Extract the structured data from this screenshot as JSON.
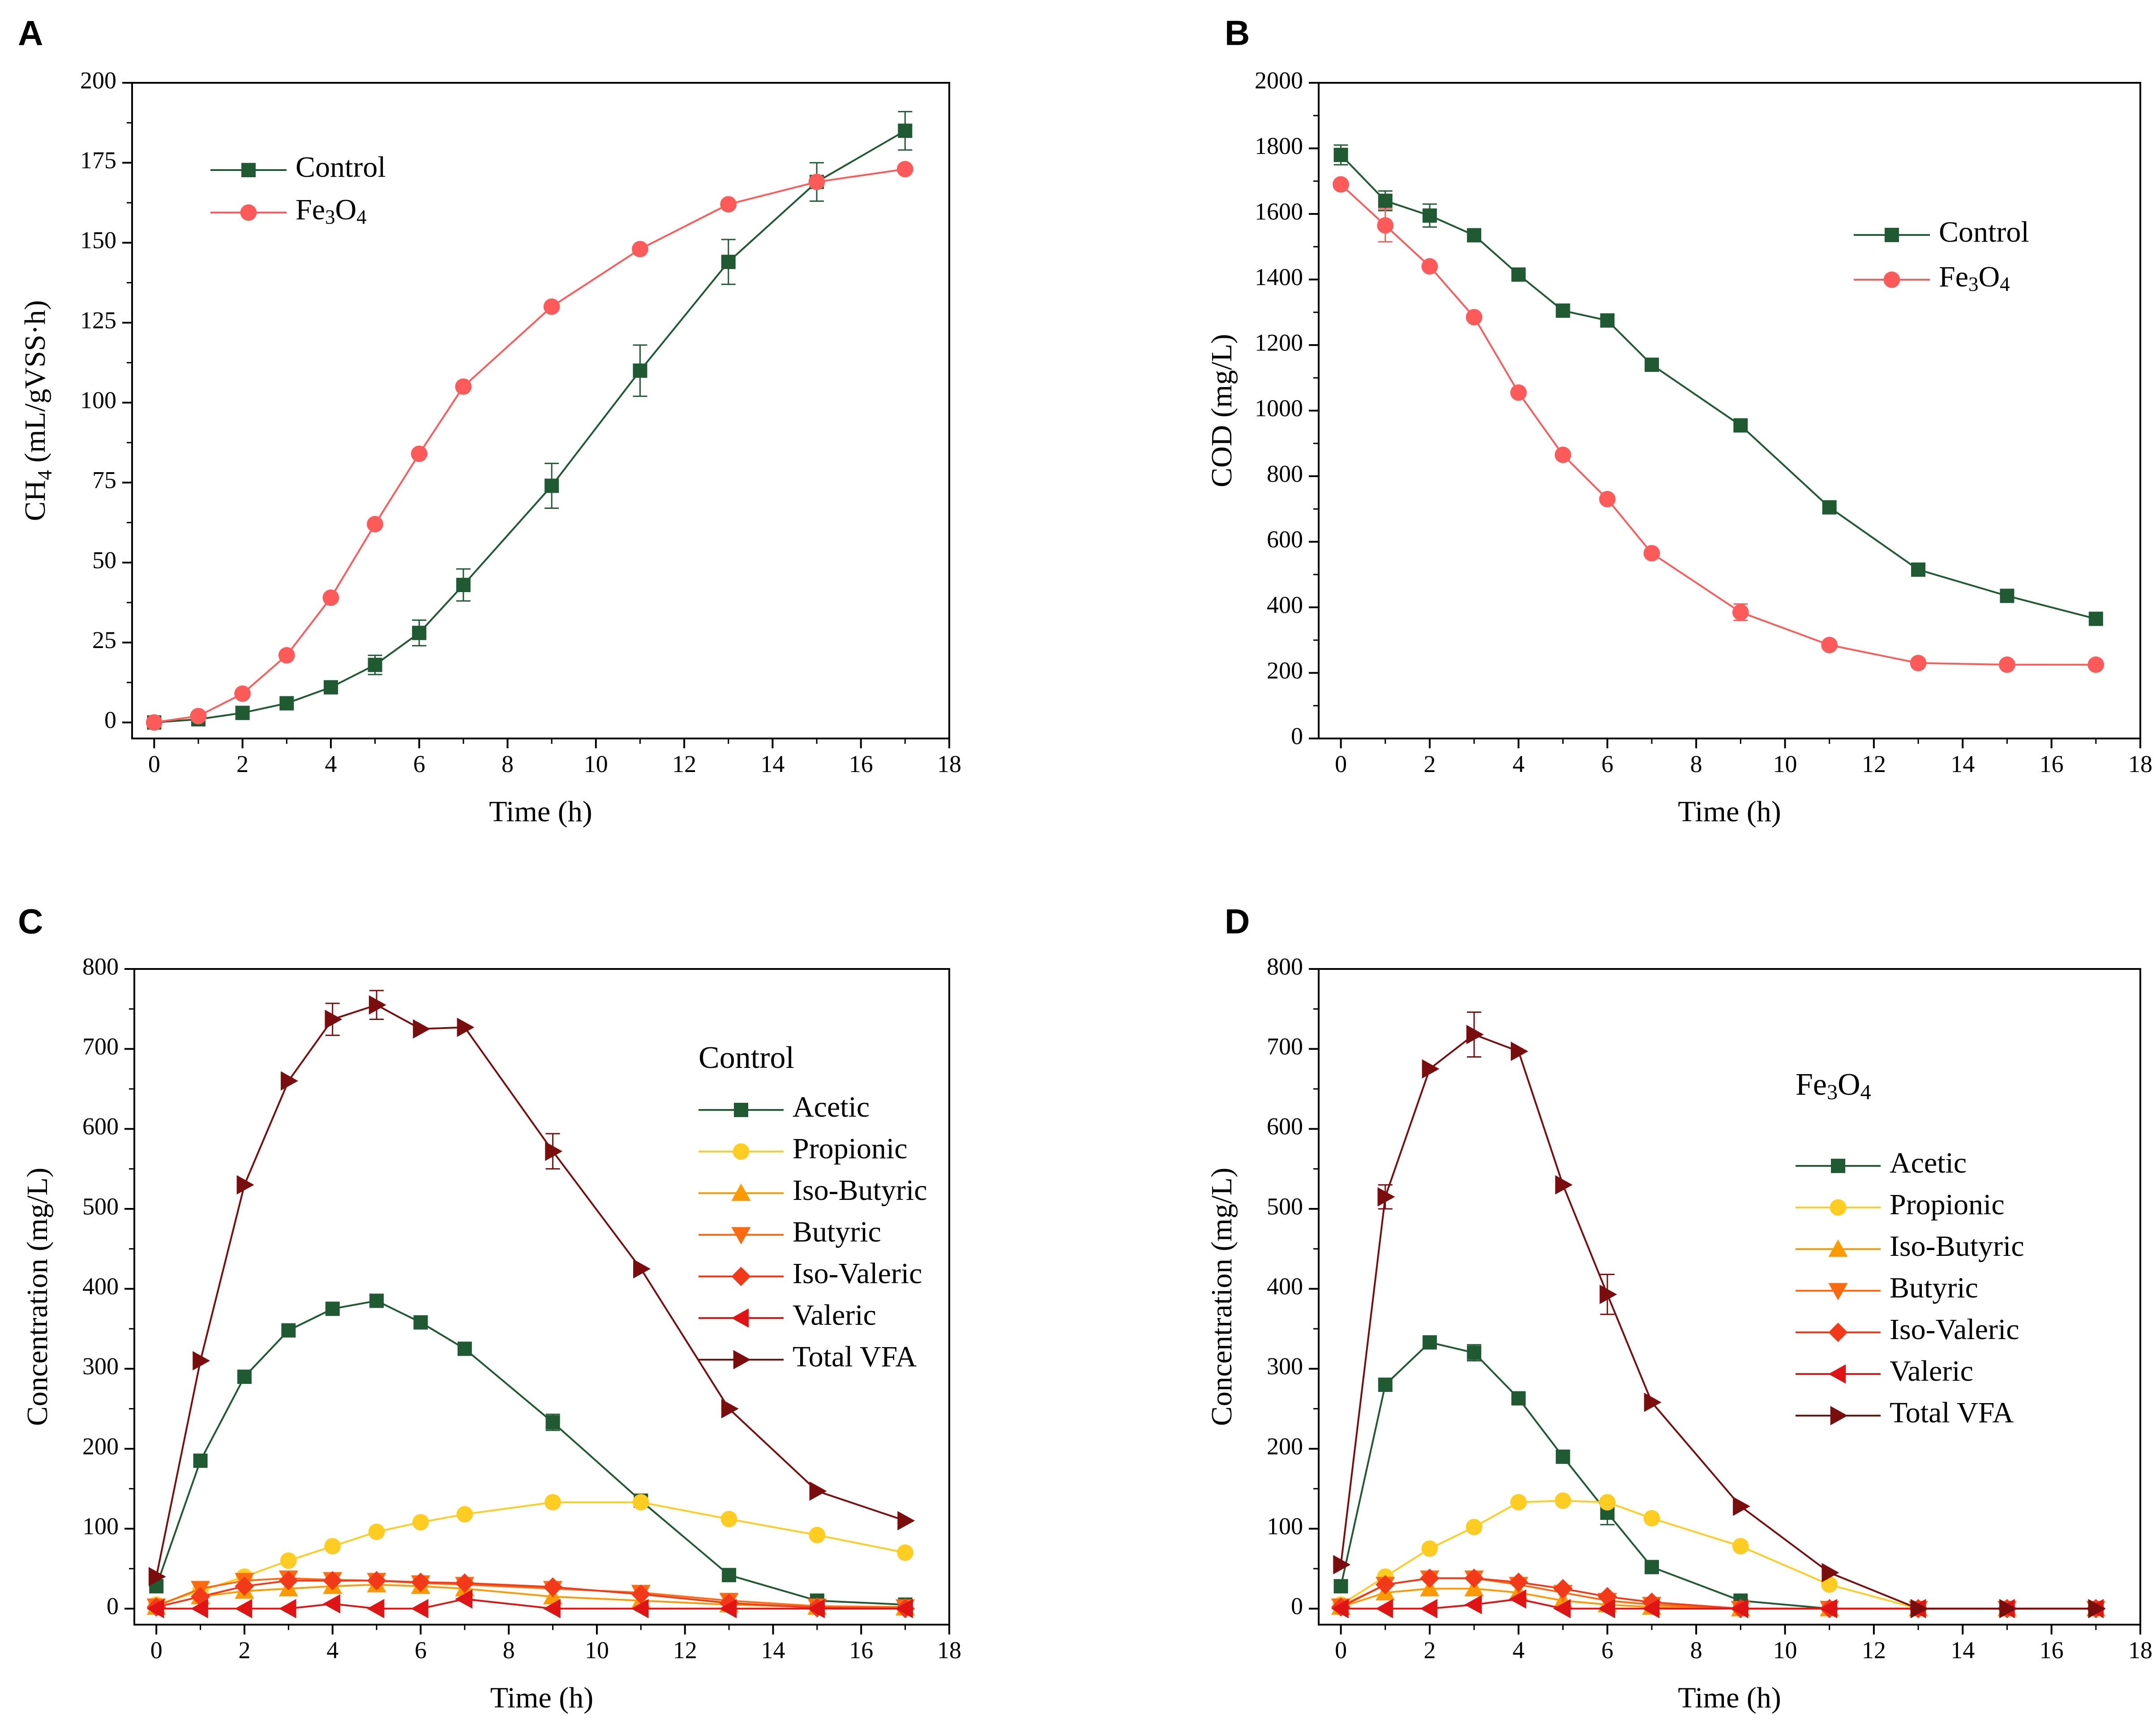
{
  "colors": {
    "control": "#1f5a32",
    "fe3o4": "#ff5a5a",
    "acetic": "#1f5a32",
    "propionic": "#ffcc22",
    "isobutyric": "#ff9900",
    "butyric": "#ff6a10",
    "isovaleric": "#f23a1a",
    "valeric": "#e01414",
    "totalvfa": "#7a0e0e"
  },
  "chart_data": [
    {
      "id": "A",
      "panel_label": "A",
      "type": "line",
      "xlabel": "Time (h)",
      "ylabel": "CH4 (mL/gVSS·h)",
      "ylabel_parts": [
        "CH",
        "4",
        " (mL/gVSS·h)"
      ],
      "xlim": [
        -0.5,
        18
      ],
      "ylim": [
        -5,
        200
      ],
      "xticks": [
        0,
        2,
        4,
        6,
        8,
        10,
        12,
        14,
        16,
        18
      ],
      "yticks": [
        0,
        25,
        50,
        75,
        100,
        125,
        150,
        175,
        200
      ],
      "legend_title": "",
      "legend_position": "top-left",
      "series": [
        {
          "name": "Control",
          "marker": "square",
          "color_key": "control",
          "x": [
            0,
            1,
            2,
            3,
            4,
            5,
            6,
            7,
            9,
            11,
            13,
            15,
            17
          ],
          "y": [
            0,
            1,
            3,
            6,
            11,
            18,
            28,
            43,
            74,
            110,
            144,
            169,
            185
          ],
          "err": [
            0,
            0,
            0,
            0,
            0,
            3,
            4,
            5,
            7,
            8,
            7,
            6,
            6
          ]
        },
        {
          "name": "Fe3O4",
          "label_parts": [
            "Fe",
            "3",
            "O",
            "4"
          ],
          "marker": "circle",
          "color_key": "fe3o4",
          "x": [
            0,
            1,
            2,
            3,
            4,
            5,
            6,
            7,
            9,
            11,
            13,
            15,
            17
          ],
          "y": [
            0,
            2,
            9,
            21,
            39,
            62,
            84,
            105,
            130,
            148,
            162,
            169,
            173
          ],
          "err": [
            0,
            0,
            0,
            0,
            0,
            0,
            0,
            0,
            0,
            0,
            0,
            0,
            0
          ]
        }
      ]
    },
    {
      "id": "B",
      "panel_label": "B",
      "type": "line",
      "xlabel": "Time (h)",
      "ylabel": "COD (mg/L)",
      "ylabel_parts": [
        "COD (mg/L)"
      ],
      "xlim": [
        -0.5,
        18
      ],
      "ylim": [
        0,
        2000
      ],
      "xticks": [
        0,
        2,
        4,
        6,
        8,
        10,
        12,
        14,
        16,
        18
      ],
      "yticks": [
        0,
        200,
        400,
        600,
        800,
        1000,
        1200,
        1400,
        1600,
        1800,
        2000
      ],
      "legend_title": "",
      "legend_position": "upper-right",
      "series": [
        {
          "name": "Control",
          "marker": "square",
          "color_key": "control",
          "x": [
            0,
            1,
            2,
            3,
            4,
            5,
            6,
            7,
            9,
            11,
            13,
            15,
            17
          ],
          "y": [
            1780,
            1640,
            1595,
            1535,
            1415,
            1305,
            1275,
            1140,
            955,
            705,
            515,
            435,
            365
          ],
          "err": [
            30,
            30,
            35,
            0,
            0,
            0,
            0,
            0,
            0,
            0,
            0,
            0,
            0
          ]
        },
        {
          "name": "Fe3O4",
          "label_parts": [
            "Fe",
            "3",
            "O",
            "4"
          ],
          "marker": "circle",
          "color_key": "fe3o4",
          "x": [
            0,
            1,
            2,
            3,
            4,
            5,
            6,
            7,
            9,
            11,
            13,
            15,
            17
          ],
          "y": [
            1690,
            1565,
            1440,
            1285,
            1055,
            865,
            730,
            565,
            385,
            285,
            230,
            225,
            225
          ],
          "err": [
            0,
            50,
            0,
            0,
            0,
            0,
            0,
            0,
            25,
            0,
            0,
            0,
            0
          ]
        }
      ]
    },
    {
      "id": "C",
      "panel_label": "C",
      "type": "line",
      "xlabel": "Time (h)",
      "ylabel": "Concentration (mg/L)",
      "ylabel_parts": [
        "Concentration (mg/L)"
      ],
      "xlim": [
        -0.5,
        18
      ],
      "ylim": [
        -20,
        800
      ],
      "xticks": [
        0,
        2,
        4,
        6,
        8,
        10,
        12,
        14,
        16,
        18
      ],
      "yticks": [
        0,
        100,
        200,
        300,
        400,
        500,
        600,
        700,
        800
      ],
      "legend_title": "Control",
      "legend_position": "upper-right",
      "series": [
        {
          "name": "Acetic",
          "marker": "square",
          "color_key": "acetic",
          "x": [
            0,
            1,
            2,
            3,
            4,
            5,
            6,
            7,
            9,
            11,
            13,
            15,
            17
          ],
          "y": [
            28,
            185,
            290,
            348,
            375,
            385,
            358,
            325,
            233,
            135,
            42,
            10,
            5
          ],
          "err": [
            0,
            0,
            0,
            0,
            0,
            0,
            0,
            0,
            10,
            0,
            0,
            0,
            0
          ]
        },
        {
          "name": "Propionic",
          "marker": "circle",
          "color_key": "propionic",
          "x": [
            0,
            1,
            2,
            3,
            4,
            5,
            6,
            7,
            9,
            11,
            13,
            15,
            17
          ],
          "y": [
            5,
            22,
            40,
            60,
            78,
            96,
            108,
            118,
            133,
            133,
            112,
            92,
            70
          ],
          "err": [
            0,
            0,
            0,
            0,
            0,
            0,
            0,
            0,
            0,
            0,
            0,
            0,
            0
          ]
        },
        {
          "name": "Iso-Butyric",
          "marker": "triangle-up",
          "color_key": "isobutyric",
          "x": [
            0,
            1,
            2,
            3,
            4,
            5,
            6,
            7,
            9,
            11,
            13,
            15,
            17
          ],
          "y": [
            2,
            15,
            22,
            25,
            28,
            30,
            28,
            25,
            15,
            10,
            5,
            2,
            1
          ],
          "err": [
            0,
            0,
            0,
            0,
            0,
            0,
            0,
            0,
            0,
            0,
            0,
            0,
            0
          ]
        },
        {
          "name": "Butyric",
          "marker": "triangle-down",
          "color_key": "butyric",
          "x": [
            0,
            1,
            2,
            3,
            4,
            5,
            6,
            7,
            9,
            11,
            13,
            15,
            17
          ],
          "y": [
            3,
            25,
            35,
            38,
            36,
            35,
            32,
            30,
            25,
            20,
            10,
            3,
            2
          ],
          "err": [
            0,
            0,
            0,
            0,
            0,
            0,
            0,
            0,
            0,
            0,
            0,
            0,
            0
          ]
        },
        {
          "name": "Iso-Valeric",
          "marker": "diamond",
          "color_key": "isovaleric",
          "x": [
            0,
            1,
            2,
            3,
            4,
            5,
            6,
            7,
            9,
            11,
            13,
            15,
            17
          ],
          "y": [
            2,
            15,
            28,
            35,
            35,
            35,
            33,
            32,
            27,
            18,
            7,
            1,
            0
          ],
          "err": [
            0,
            0,
            0,
            0,
            0,
            0,
            0,
            0,
            0,
            0,
            0,
            0,
            0
          ]
        },
        {
          "name": "Valeric",
          "marker": "triangle-left",
          "color_key": "valeric",
          "x": [
            0,
            1,
            2,
            3,
            4,
            5,
            6,
            7,
            9,
            11,
            13,
            15,
            17
          ],
          "y": [
            0,
            0,
            0,
            0,
            6,
            0,
            0,
            12,
            0,
            0,
            0,
            0,
            0
          ],
          "err": [
            0,
            0,
            0,
            0,
            0,
            0,
            0,
            0,
            0,
            0,
            0,
            0,
            0
          ]
        },
        {
          "name": "Total VFA",
          "marker": "triangle-right",
          "color_key": "totalvfa",
          "x": [
            0,
            1,
            2,
            3,
            4,
            5,
            6,
            7,
            9,
            11,
            13,
            15,
            17
          ],
          "y": [
            40,
            310,
            530,
            660,
            737,
            755,
            725,
            727,
            572,
            425,
            250,
            147,
            110
          ],
          "err": [
            0,
            0,
            0,
            0,
            20,
            18,
            0,
            0,
            22,
            0,
            0,
            0,
            0
          ]
        }
      ]
    },
    {
      "id": "D",
      "panel_label": "D",
      "type": "line",
      "xlabel": "Time (h)",
      "ylabel": "Concentration (mg/L)",
      "ylabel_parts": [
        "Concentration (mg/L)"
      ],
      "xlim": [
        -0.5,
        18
      ],
      "ylim": [
        -20,
        800
      ],
      "xticks": [
        0,
        2,
        4,
        6,
        8,
        10,
        12,
        14,
        16,
        18
      ],
      "yticks": [
        0,
        100,
        200,
        300,
        400,
        500,
        600,
        700,
        800
      ],
      "legend_title": "Fe3O4",
      "legend_title_parts": [
        "Fe",
        "3",
        "O",
        "4"
      ],
      "legend_position": "upper-right",
      "series": [
        {
          "name": "Acetic",
          "marker": "square",
          "color_key": "acetic",
          "x": [
            0,
            1,
            2,
            3,
            4,
            5,
            6,
            7,
            9,
            11,
            13,
            15,
            17
          ],
          "y": [
            28,
            280,
            333,
            320,
            263,
            190,
            120,
            52,
            10,
            0,
            0,
            0,
            0
          ],
          "err": [
            0,
            0,
            0,
            10,
            0,
            0,
            15,
            0,
            0,
            0,
            0,
            0,
            0
          ]
        },
        {
          "name": "Propionic",
          "marker": "circle",
          "color_key": "propionic",
          "x": [
            0,
            1,
            2,
            3,
            4,
            5,
            6,
            7,
            9,
            11,
            13,
            15,
            17
          ],
          "y": [
            5,
            40,
            75,
            102,
            133,
            135,
            133,
            113,
            78,
            30,
            0,
            0,
            0
          ],
          "err": [
            0,
            0,
            0,
            0,
            0,
            0,
            0,
            0,
            0,
            0,
            0,
            0,
            0
          ]
        },
        {
          "name": "Iso-Butyric",
          "marker": "triangle-up",
          "color_key": "isobutyric",
          "x": [
            0,
            1,
            2,
            3,
            4,
            5,
            6,
            7,
            9,
            11,
            13,
            15,
            17
          ],
          "y": [
            2,
            20,
            25,
            25,
            20,
            10,
            5,
            2,
            0,
            0,
            0,
            0,
            0
          ],
          "err": [
            0,
            0,
            0,
            0,
            0,
            0,
            0,
            0,
            0,
            0,
            0,
            0,
            0
          ]
        },
        {
          "name": "Butyric",
          "marker": "triangle-down",
          "color_key": "butyric",
          "x": [
            0,
            1,
            2,
            3,
            4,
            5,
            6,
            7,
            9,
            11,
            13,
            15,
            17
          ],
          "y": [
            3,
            30,
            38,
            38,
            30,
            20,
            10,
            5,
            0,
            0,
            0,
            0,
            0
          ],
          "err": [
            0,
            0,
            0,
            0,
            0,
            0,
            0,
            0,
            0,
            0,
            0,
            0,
            0
          ]
        },
        {
          "name": "Iso-Valeric",
          "marker": "diamond",
          "color_key": "isovaleric",
          "x": [
            0,
            1,
            2,
            3,
            4,
            5,
            6,
            7,
            9,
            11,
            13,
            15,
            17
          ],
          "y": [
            2,
            30,
            38,
            38,
            33,
            25,
            15,
            8,
            0,
            0,
            0,
            0,
            0
          ],
          "err": [
            0,
            0,
            0,
            0,
            0,
            0,
            0,
            0,
            0,
            0,
            0,
            0,
            0
          ]
        },
        {
          "name": "Valeric",
          "marker": "triangle-left",
          "color_key": "valeric",
          "x": [
            0,
            1,
            2,
            3,
            4,
            5,
            6,
            7,
            9,
            11,
            13,
            15,
            17
          ],
          "y": [
            0,
            0,
            0,
            5,
            12,
            0,
            0,
            0,
            0,
            0,
            0,
            0,
            0
          ],
          "err": [
            0,
            0,
            0,
            0,
            0,
            0,
            0,
            0,
            0,
            0,
            0,
            0,
            0
          ]
        },
        {
          "name": "Total VFA",
          "marker": "triangle-right",
          "color_key": "totalvfa",
          "x": [
            0,
            1,
            2,
            3,
            4,
            5,
            6,
            7,
            9,
            11,
            13,
            15,
            17
          ],
          "y": [
            55,
            515,
            675,
            718,
            697,
            530,
            393,
            258,
            128,
            45,
            0,
            0,
            0
          ],
          "err": [
            0,
            15,
            0,
            28,
            0,
            0,
            25,
            0,
            0,
            0,
            0,
            0,
            0
          ]
        }
      ]
    }
  ]
}
